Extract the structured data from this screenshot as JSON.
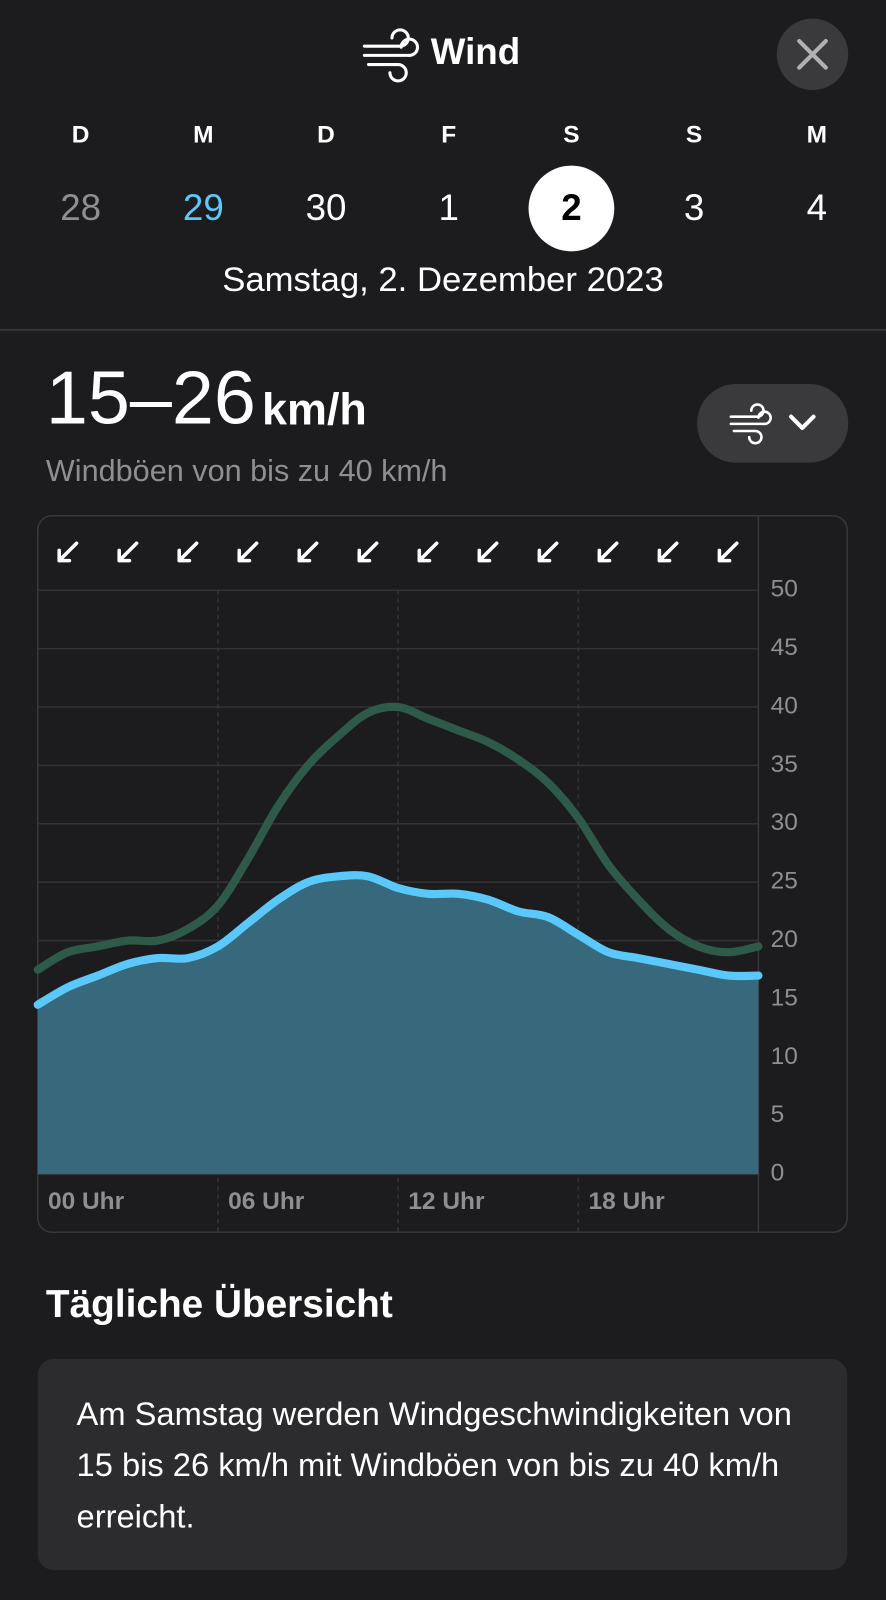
{
  "header": {
    "title": "Wind"
  },
  "days": [
    {
      "weekday": "D",
      "day": "28"
    },
    {
      "weekday": "M",
      "day": "29"
    },
    {
      "weekday": "D",
      "day": "30"
    },
    {
      "weekday": "F",
      "day": "1"
    },
    {
      "weekday": "S",
      "day": "2"
    },
    {
      "weekday": "S",
      "day": "3"
    },
    {
      "weekday": "M",
      "day": "4"
    }
  ],
  "selected_date": "Samstag, 2. Dezember 2023",
  "summary": {
    "range": "15–26",
    "unit": "km/h",
    "gusts": "Windböen von bis zu 40 km/h"
  },
  "chart_data": {
    "type": "area",
    "x": [
      0,
      1,
      2,
      3,
      4,
      5,
      6,
      7,
      8,
      9,
      10,
      11,
      12,
      13,
      14,
      15,
      16,
      17,
      18,
      19,
      20,
      21,
      22,
      23,
      24
    ],
    "series": [
      {
        "name": "Windböen",
        "color": "#2e5a49",
        "values": [
          17.5,
          19,
          19.5,
          20,
          20,
          21,
          23,
          27,
          31.5,
          35,
          37.5,
          39.5,
          40,
          39,
          38,
          37,
          35.5,
          33.5,
          30.5,
          26.5,
          23.5,
          21,
          19.5,
          19,
          19.5
        ]
      },
      {
        "name": "Wind",
        "color": "#5ac8fa",
        "fill": "#37687b",
        "values": [
          14.5,
          16,
          17,
          18,
          18.5,
          18.5,
          19.5,
          21.5,
          23.5,
          25,
          25.5,
          25.5,
          24.5,
          24,
          24,
          23.5,
          22.5,
          22,
          20.5,
          19,
          18.5,
          18,
          17.5,
          17,
          17
        ]
      }
    ],
    "xlim": [
      0,
      24
    ],
    "xticks": [
      {
        "value": 0,
        "label": "00 Uhr"
      },
      {
        "value": 6,
        "label": "06 Uhr"
      },
      {
        "value": 12,
        "label": "12 Uhr"
      },
      {
        "value": 18,
        "label": "18 Uhr"
      }
    ],
    "ylim": [
      0,
      50
    ],
    "yticks": [
      0,
      5,
      10,
      15,
      20,
      25,
      30,
      35,
      40,
      45,
      50
    ],
    "grid": true
  },
  "overview": {
    "title": "Tägliche Übersicht",
    "text": "Am Samstag werden Windgeschwindigkeiten von 15 bis 26 km/h mit Windböen von bis zu 40 km/h erreicht."
  }
}
